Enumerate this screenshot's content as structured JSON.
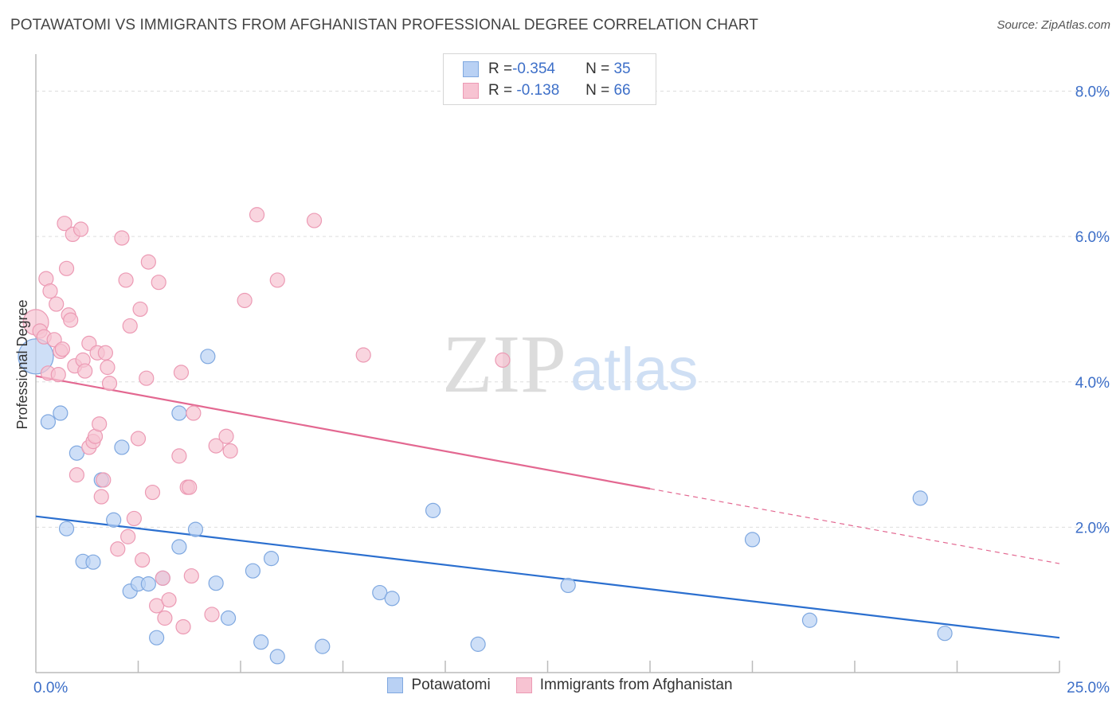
{
  "header": {
    "title": "POTAWATOMI VS IMMIGRANTS FROM AFGHANISTAN PROFESSIONAL DEGREE CORRELATION CHART",
    "source": "Source: ZipAtlas.com"
  },
  "watermark": {
    "zip": "ZIP",
    "atlas": "atlas"
  },
  "legend": {
    "rows": [
      {
        "r_label": "R = ",
        "r_value": "-0.354",
        "n_label": "N = ",
        "n_value": "35"
      },
      {
        "r_label": "R = ",
        "r_value": " -0.138",
        "n_label": "N = ",
        "n_value": "66"
      }
    ]
  },
  "colors": {
    "blue_fill": "#b9d1f4",
    "blue_stroke": "#7fa8e0",
    "blue_line": "#2b6fcf",
    "pink_fill": "#f7c3d2",
    "pink_stroke": "#ec9ab4",
    "pink_line": "#e36891",
    "axis_text": "#3d6fc8"
  },
  "chart_data": {
    "type": "scatter",
    "title": "POTAWATOMI VS IMMIGRANTS FROM AFGHANISTAN PROFESSIONAL DEGREE CORRELATION CHART",
    "xlabel": "",
    "ylabel": "Professional Degree",
    "xlim": [
      0,
      25
    ],
    "ylim": [
      0,
      8.4
    ],
    "x_tick_labels": [
      {
        "value": 0,
        "label": "0.0%"
      },
      {
        "value": 25,
        "label": "25.0%"
      }
    ],
    "y_tick_labels": [
      {
        "value": 2,
        "label": "2.0%"
      },
      {
        "value": 4,
        "label": "4.0%"
      },
      {
        "value": 6,
        "label": "6.0%"
      },
      {
        "value": 8,
        "label": "8.0%"
      }
    ],
    "x_minor_ticks": [
      2.5,
      5,
      7.5,
      10,
      12.5,
      15,
      17.5,
      20,
      22.5
    ],
    "series": [
      {
        "name": "Potawatomi",
        "r": -0.354,
        "n": 35,
        "trend": {
          "x": [
            0,
            25
          ],
          "y": [
            2.15,
            0.48
          ]
        },
        "points": [
          [
            0.0,
            4.35,
            22
          ],
          [
            0.3,
            3.45,
            9
          ],
          [
            0.6,
            3.57,
            9
          ],
          [
            0.75,
            1.98,
            9
          ],
          [
            1.0,
            3.02,
            9
          ],
          [
            1.15,
            1.53,
            9
          ],
          [
            1.4,
            1.52,
            9
          ],
          [
            1.6,
            2.65,
            9
          ],
          [
            1.9,
            2.1,
            9
          ],
          [
            2.1,
            3.1,
            9
          ],
          [
            2.3,
            1.12,
            9
          ],
          [
            2.5,
            1.22,
            9
          ],
          [
            2.75,
            1.22,
            9
          ],
          [
            2.95,
            0.48,
            9
          ],
          [
            3.1,
            1.3,
            9
          ],
          [
            3.5,
            3.57,
            9
          ],
          [
            3.5,
            1.73,
            9
          ],
          [
            3.9,
            1.97,
            9
          ],
          [
            4.2,
            4.35,
            9
          ],
          [
            4.4,
            1.23,
            9
          ],
          [
            4.7,
            0.75,
            9
          ],
          [
            5.3,
            1.4,
            9
          ],
          [
            5.5,
            0.42,
            9
          ],
          [
            5.75,
            1.57,
            9
          ],
          [
            5.9,
            0.22,
            9
          ],
          [
            7.0,
            0.36,
            9
          ],
          [
            8.4,
            1.1,
            9
          ],
          [
            8.7,
            1.02,
            9
          ],
          [
            9.7,
            2.23,
            9
          ],
          [
            10.8,
            0.39,
            9
          ],
          [
            13.0,
            1.2,
            9
          ],
          [
            17.5,
            1.83,
            9
          ],
          [
            18.9,
            0.72,
            9
          ],
          [
            21.6,
            2.4,
            9
          ],
          [
            22.2,
            0.54,
            9
          ]
        ]
      },
      {
        "name": "Immigrants from Afghanistan",
        "r": -0.138,
        "n": 66,
        "trend": {
          "x": [
            0,
            15
          ],
          "y": [
            4.08,
            2.53
          ]
        },
        "trend_dashed": {
          "x": [
            15,
            25
          ],
          "y": [
            2.53,
            1.5
          ]
        },
        "points": [
          [
            0.0,
            4.82,
            16
          ],
          [
            0.1,
            4.7,
            9
          ],
          [
            0.2,
            4.62,
            9
          ],
          [
            0.25,
            5.42,
            9
          ],
          [
            0.3,
            4.12,
            9
          ],
          [
            0.35,
            5.25,
            9
          ],
          [
            0.45,
            4.58,
            9
          ],
          [
            0.5,
            5.07,
            9
          ],
          [
            0.55,
            4.1,
            9
          ],
          [
            0.6,
            4.42,
            9
          ],
          [
            0.65,
            4.45,
            9
          ],
          [
            0.7,
            6.18,
            9
          ],
          [
            0.75,
            5.56,
            9
          ],
          [
            0.8,
            4.92,
            9
          ],
          [
            0.85,
            4.85,
            9
          ],
          [
            0.9,
            6.03,
            9
          ],
          [
            0.95,
            4.22,
            9
          ],
          [
            1.0,
            2.72,
            9
          ],
          [
            1.1,
            6.1,
            9
          ],
          [
            1.15,
            4.3,
            9
          ],
          [
            1.2,
            4.15,
            9
          ],
          [
            1.3,
            4.53,
            9
          ],
          [
            1.3,
            3.1,
            9
          ],
          [
            1.4,
            3.18,
            9
          ],
          [
            1.45,
            3.25,
            9
          ],
          [
            1.5,
            4.4,
            9
          ],
          [
            1.55,
            3.42,
            9
          ],
          [
            1.6,
            2.42,
            9
          ],
          [
            1.65,
            2.65,
            9
          ],
          [
            1.7,
            4.4,
            9
          ],
          [
            1.75,
            4.2,
            9
          ],
          [
            1.8,
            3.98,
            9
          ],
          [
            2.0,
            1.7,
            9
          ],
          [
            2.1,
            5.98,
            9
          ],
          [
            2.2,
            5.4,
            9
          ],
          [
            2.25,
            1.87,
            9
          ],
          [
            2.3,
            4.77,
            9
          ],
          [
            2.4,
            2.12,
            9
          ],
          [
            2.5,
            3.22,
            9
          ],
          [
            2.55,
            5.0,
            9
          ],
          [
            2.6,
            1.55,
            9
          ],
          [
            2.7,
            4.05,
            9
          ],
          [
            2.75,
            5.65,
            9
          ],
          [
            2.85,
            2.48,
            9
          ],
          [
            2.95,
            0.92,
            9
          ],
          [
            3.0,
            5.37,
            9
          ],
          [
            3.1,
            1.3,
            9
          ],
          [
            3.15,
            0.75,
            9
          ],
          [
            3.25,
            1.0,
            9
          ],
          [
            3.5,
            2.98,
            9
          ],
          [
            3.55,
            4.13,
            9
          ],
          [
            3.6,
            0.63,
            9
          ],
          [
            3.7,
            2.55,
            9
          ],
          [
            3.75,
            2.55,
            9
          ],
          [
            3.8,
            1.33,
            9
          ],
          [
            3.85,
            3.57,
            9
          ],
          [
            4.3,
            0.8,
            9
          ],
          [
            4.4,
            3.12,
            9
          ],
          [
            4.65,
            3.25,
            9
          ],
          [
            4.75,
            3.05,
            9
          ],
          [
            5.1,
            5.12,
            9
          ],
          [
            5.4,
            6.3,
            9
          ],
          [
            5.9,
            5.4,
            9
          ],
          [
            6.8,
            6.22,
            9
          ],
          [
            8.0,
            4.37,
            9
          ],
          [
            11.4,
            4.3,
            9
          ]
        ]
      }
    ]
  },
  "bottom_legend": {
    "items": [
      {
        "label": "Potawatomi"
      },
      {
        "label": "Immigrants from Afghanistan"
      }
    ]
  }
}
